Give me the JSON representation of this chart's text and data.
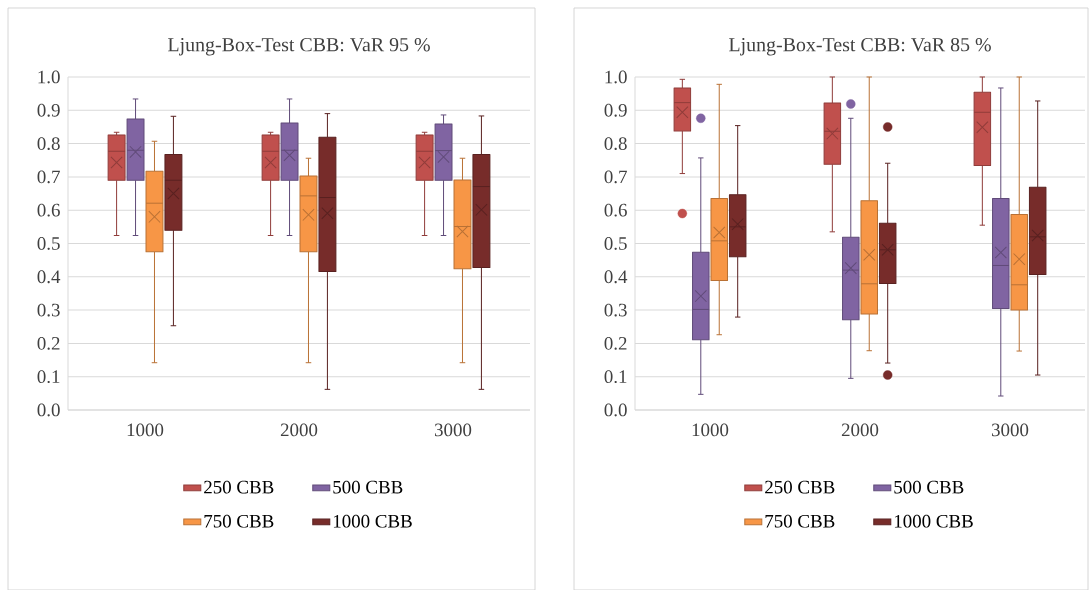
{
  "chart_data": [
    {
      "type": "box",
      "title": "Ljung-Box-Test CBB: VaR 95 %",
      "categories": [
        "1000",
        "2000",
        "3000"
      ],
      "ylim": [
        0,
        1
      ],
      "yticks": [
        {
          "value": 0,
          "label": "0.0"
        },
        {
          "value": 0.1,
          "label": "0.1"
        },
        {
          "value": 0.2,
          "label": "0.2"
        },
        {
          "value": 0.3,
          "label": "0.3"
        },
        {
          "value": 0.4,
          "label": "0.4"
        },
        {
          "value": 0.5,
          "label": "0.5"
        },
        {
          "value": 0.6,
          "label": "0.6"
        },
        {
          "value": 0.7,
          "label": "0.7"
        },
        {
          "value": 0.8,
          "label": "0.8"
        },
        {
          "value": 0.9,
          "label": "0.9"
        },
        {
          "value": 1,
          "label": "1.0"
        }
      ],
      "grid": "y",
      "legend": "bottom",
      "series": [
        {
          "name": "250 CBB",
          "color": "#c0504d",
          "boxes": [
            {
              "low": 0.524,
              "q1": 0.69,
              "median": 0.777,
              "q3": 0.826,
              "high": 0.834,
              "mean": 0.743
            },
            {
              "low": 0.524,
              "q1": 0.69,
              "median": 0.777,
              "q3": 0.826,
              "high": 0.834,
              "mean": 0.743
            },
            {
              "low": 0.524,
              "q1": 0.69,
              "median": 0.777,
              "q3": 0.826,
              "high": 0.834,
              "mean": 0.743
            }
          ]
        },
        {
          "name": "500 CBB",
          "color": "#8064a2",
          "boxes": [
            {
              "low": 0.524,
              "q1": 0.69,
              "median": 0.78,
              "q3": 0.874,
              "high": 0.934,
              "mean": 0.775
            },
            {
              "low": 0.524,
              "q1": 0.69,
              "median": 0.78,
              "q3": 0.862,
              "high": 0.934,
              "mean": 0.765
            },
            {
              "low": 0.524,
              "q1": 0.69,
              "median": 0.779,
              "q3": 0.859,
              "high": 0.886,
              "mean": 0.76
            }
          ]
        },
        {
          "name": "750 CBB",
          "color": "#f79646",
          "boxes": [
            {
              "low": 0.142,
              "q1": 0.475,
              "median": 0.621,
              "q3": 0.717,
              "high": 0.807,
              "mean": 0.58
            },
            {
              "low": 0.142,
              "q1": 0.475,
              "median": 0.643,
              "q3": 0.703,
              "high": 0.756,
              "mean": 0.586
            },
            {
              "low": 0.142,
              "q1": 0.424,
              "median": 0.551,
              "q3": 0.691,
              "high": 0.756,
              "mean": 0.536
            }
          ]
        },
        {
          "name": "1000 CBB",
          "color": "#772c2a",
          "boxes": [
            {
              "low": 0.253,
              "q1": 0.54,
              "median": 0.69,
              "q3": 0.767,
              "high": 0.882,
              "mean": 0.65
            },
            {
              "low": 0.062,
              "q1": 0.416,
              "median": 0.638,
              "q3": 0.819,
              "high": 0.89,
              "mean": 0.591
            },
            {
              "low": 0.062,
              "q1": 0.428,
              "median": 0.671,
              "q3": 0.767,
              "high": 0.883,
              "mean": 0.601
            }
          ]
        }
      ]
    },
    {
      "type": "box",
      "title": "Ljung-Box-Test CBB: VaR 85 %",
      "categories": [
        "1000",
        "2000",
        "3000"
      ],
      "ylim": [
        0,
        1
      ],
      "yticks": [
        {
          "value": 0,
          "label": "0.0"
        },
        {
          "value": 0.1,
          "label": "0.1"
        },
        {
          "value": 0.2,
          "label": "0.2"
        },
        {
          "value": 0.3,
          "label": "0.3"
        },
        {
          "value": 0.4,
          "label": "0.4"
        },
        {
          "value": 0.5,
          "label": "0.5"
        },
        {
          "value": 0.6,
          "label": "0.6"
        },
        {
          "value": 0.7,
          "label": "0.7"
        },
        {
          "value": 0.8,
          "label": "0.8"
        },
        {
          "value": 0.9,
          "label": "0.9"
        },
        {
          "value": 1,
          "label": "1.0"
        }
      ],
      "grid": "y",
      "legend": "bottom",
      "series": [
        {
          "name": "250 CBB",
          "color": "#c0504d",
          "boxes": [
            {
              "low": 0.71,
              "q1": 0.838,
              "median": 0.923,
              "q3": 0.967,
              "high": 0.993,
              "mean": 0.894,
              "outliers": [
                0.59
              ]
            },
            {
              "low": 0.535,
              "q1": 0.738,
              "median": 0.837,
              "q3": 0.922,
              "high": 1.0,
              "mean": 0.83
            },
            {
              "low": 0.555,
              "q1": 0.734,
              "median": 0.894,
              "q3": 0.954,
              "high": 1.0,
              "mean": 0.849
            }
          ]
        },
        {
          "name": "500 CBB",
          "color": "#8064a2",
          "boxes": [
            {
              "low": 0.047,
              "q1": 0.211,
              "median": 0.302,
              "q3": 0.474,
              "high": 0.757,
              "mean": 0.342,
              "outliers": [
                0.876
              ]
            },
            {
              "low": 0.095,
              "q1": 0.271,
              "median": 0.42,
              "q3": 0.519,
              "high": 0.876,
              "mean": 0.426,
              "outliers": [
                0.919
              ]
            },
            {
              "low": 0.042,
              "q1": 0.305,
              "median": 0.434,
              "q3": 0.635,
              "high": 0.967,
              "mean": 0.473
            }
          ]
        },
        {
          "name": "750 CBB",
          "color": "#f79646",
          "boxes": [
            {
              "low": 0.226,
              "q1": 0.389,
              "median": 0.508,
              "q3": 0.635,
              "high": 0.978,
              "mean": 0.533
            },
            {
              "low": 0.178,
              "q1": 0.288,
              "median": 0.379,
              "q3": 0.628,
              "high": 1.0,
              "mean": 0.466
            },
            {
              "low": 0.177,
              "q1": 0.3,
              "median": 0.376,
              "q3": 0.587,
              "high": 1.0,
              "mean": 0.453
            }
          ]
        },
        {
          "name": "1000 CBB",
          "color": "#772c2a",
          "boxes": [
            {
              "low": 0.279,
              "q1": 0.46,
              "median": 0.55,
              "q3": 0.646,
              "high": 0.854,
              "mean": 0.558
            },
            {
              "low": 0.141,
              "q1": 0.38,
              "median": 0.481,
              "q3": 0.561,
              "high": 0.741,
              "mean": 0.481,
              "outliers": [
                0.85,
                0.105
              ]
            },
            {
              "low": 0.105,
              "q1": 0.407,
              "median": 0.52,
              "q3": 0.669,
              "high": 0.928,
              "mean": 0.524
            }
          ]
        }
      ]
    }
  ]
}
